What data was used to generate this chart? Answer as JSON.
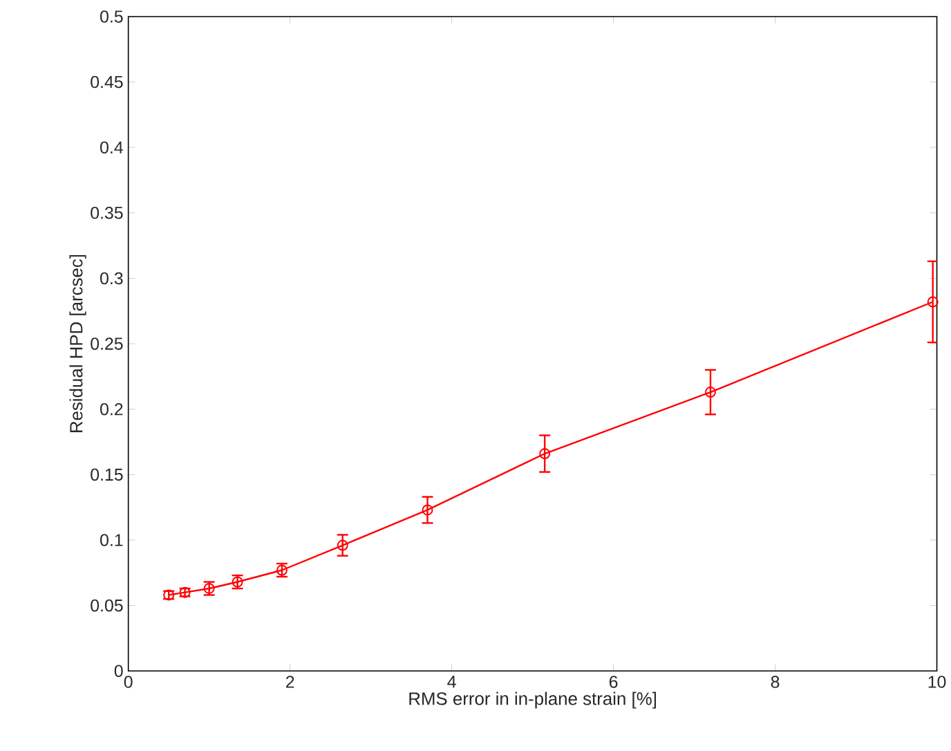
{
  "chart_data": {
    "type": "line",
    "xlabel": "RMS error in in-plane strain [%]",
    "ylabel": "Residual HPD [arcsec]",
    "x": [
      0.5,
      0.7,
      1.0,
      1.35,
      1.9,
      2.65,
      3.7,
      5.15,
      7.2,
      9.95
    ],
    "series": [
      {
        "color": "#ff0000",
        "values": [
          0.058,
          0.06,
          0.063,
          0.068,
          0.077,
          0.096,
          0.123,
          0.166,
          0.213,
          0.282
        ],
        "errors": [
          0.003,
          0.003,
          0.005,
          0.005,
          0.005,
          0.008,
          0.01,
          0.014,
          0.017,
          0.031
        ]
      }
    ],
    "xlim": [
      0,
      10
    ],
    "ylim": [
      0,
      0.5
    ],
    "xticks": [
      0,
      2,
      4,
      6,
      8,
      10
    ],
    "yticks": [
      0,
      0.05,
      0.1,
      0.15,
      0.2,
      0.25,
      0.3,
      0.35,
      0.4,
      0.45,
      0.5
    ],
    "marker": "circle",
    "line_style": "solid"
  }
}
